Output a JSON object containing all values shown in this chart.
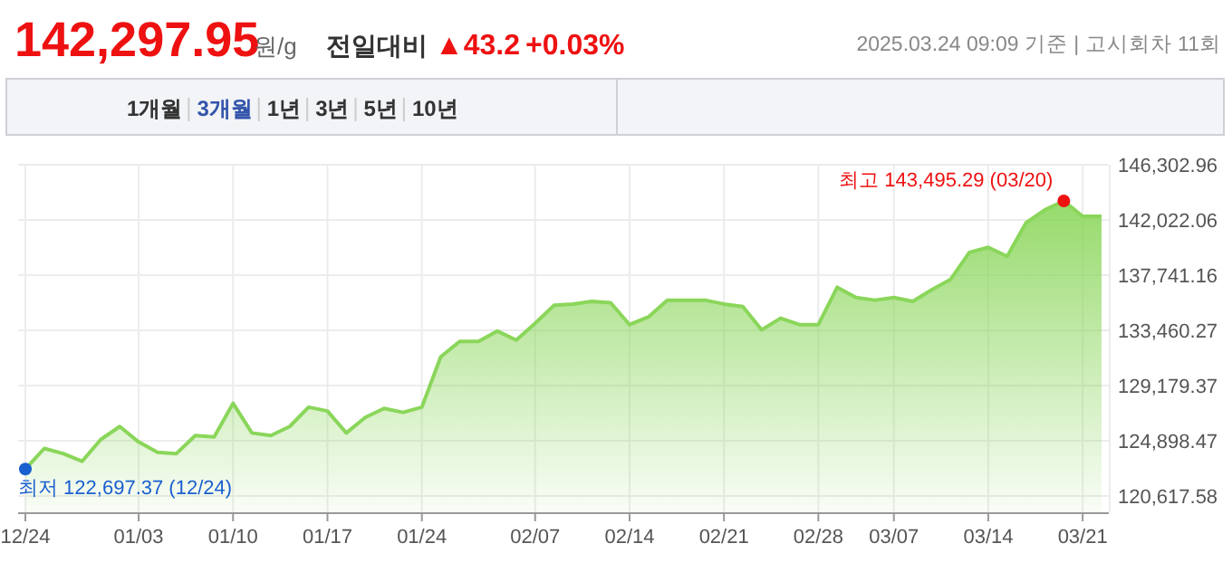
{
  "chart_data": {
    "type": "area",
    "title": "142,297.95",
    "annotations": [
      "원/g",
      "전일대비",
      "▲43.2",
      "+0.03%",
      "2025.03.24 09:09 기준 | 고시회차 11회",
      "1개월",
      "3개월",
      "1년",
      "3년",
      "5년",
      "10년",
      "최저 122,697.37 (12/24)",
      "최고 143,495.29 (03/20)"
    ],
    "categories": [
      "12/24",
      null,
      null,
      null,
      null,
      null,
      "01/03",
      null,
      null,
      null,
      null,
      "01/10",
      null,
      null,
      null,
      null,
      "01/17",
      null,
      null,
      null,
      null,
      "01/24",
      null,
      null,
      null,
      null,
      null,
      "02/07",
      null,
      null,
      null,
      null,
      "02/14",
      null,
      null,
      null,
      null,
      "02/21",
      null,
      null,
      null,
      null,
      "02/28",
      null,
      null,
      null,
      "03/07",
      null,
      null,
      null,
      null,
      "03/14",
      null,
      null,
      null,
      null,
      "03/21",
      null
    ],
    "series": [
      {
        "color": "#8ad65a",
        "values": [
          122697.37,
          124300,
          123900,
          123300,
          125000,
          126000,
          124800,
          124000,
          123900,
          125300,
          125200,
          127800,
          125500,
          125300,
          126000,
          127500,
          127200,
          125500,
          126700,
          127400,
          127100,
          127500,
          131400,
          132600,
          132600,
          133400,
          132700,
          134000,
          135400,
          135500,
          135700,
          135600,
          133900,
          134500,
          135800,
          135800,
          135800,
          135500,
          135300,
          133500,
          134400,
          133900,
          133900,
          136800,
          136000,
          135800,
          136000,
          135700,
          136600,
          137400,
          139500,
          139900,
          139200,
          141800,
          142800,
          143495.29,
          142300,
          142300
        ]
      }
    ],
    "ylim": [
      119350,
      146302.96
    ],
    "yticks": [
      {
        "value": 120617.58,
        "label": "120,617.58"
      },
      {
        "value": 124898.47,
        "label": "124,898.47"
      },
      {
        "value": 129179.37,
        "label": "129,179.37"
      },
      {
        "value": 133460.27,
        "label": "133,460.27"
      },
      {
        "value": 137741.16,
        "label": "137,741.16"
      },
      {
        "value": 142022.06,
        "label": "142,022.06"
      },
      {
        "value": 146302.96,
        "label": "146,302.96"
      }
    ],
    "grid": true
  }
}
